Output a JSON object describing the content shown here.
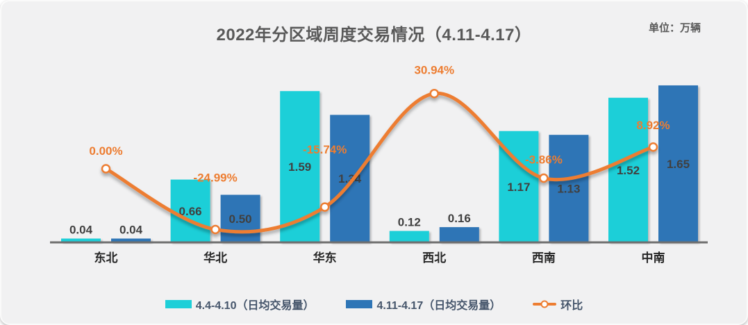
{
  "header": {
    "title": "2022年分区域周度交易情况（4.11-4.17）",
    "unit_label": "单位：万辆"
  },
  "chart_data": {
    "type": "combo-bar-line",
    "categories": [
      "东北",
      "华北",
      "华东",
      "西北",
      "西南",
      "中南"
    ],
    "series": [
      {
        "name": "4.4-4.10（日均交易量）",
        "type": "bar",
        "color": "#1ECFD8",
        "values": [
          0.04,
          0.66,
          1.59,
          0.12,
          1.17,
          1.52
        ]
      },
      {
        "name": "4.11-4.17（日均交易量）",
        "type": "bar",
        "color": "#2E75B6",
        "values": [
          0.04,
          0.5,
          1.34,
          0.16,
          1.13,
          1.65
        ]
      },
      {
        "name": "环比",
        "type": "line",
        "color": "#ED7D31",
        "values": [
          0.0,
          -24.99,
          -15.74,
          30.94,
          -3.86,
          8.92
        ]
      }
    ],
    "bar_value_labels": [
      [
        "0.04",
        "0.66",
        "1.59",
        "0.12",
        "1.17",
        "1.52"
      ],
      [
        "0.04",
        "0.50",
        "1.34",
        "0.16",
        "1.13",
        "1.65"
      ]
    ],
    "line_point_labels": [
      "0.00%",
      "-24.99%",
      "-15.74%",
      "30.94%",
      "-3.86%",
      "8.92%"
    ],
    "unit": "万辆",
    "y_axis_visible": false,
    "grid": false,
    "legend_position": "bottom"
  },
  "legend": {
    "items": [
      {
        "label": "4.4-4.10（日均交易量）",
        "swatch": "rect",
        "color": "#1ECFD8"
      },
      {
        "label": "4.11-4.17（日均交易量）",
        "swatch": "rect",
        "color": "#2E75B6"
      },
      {
        "label": "环比",
        "swatch": "line-marker",
        "color": "#ED7D31"
      }
    ]
  },
  "colors": {
    "background": "#F1F1F2",
    "series1": "#1ECFD8",
    "series2": "#2E75B6",
    "line": "#ED7D31",
    "bar_label": "#404040",
    "pct_label": "#ED7D31",
    "category_label": "#262626",
    "title": "#595959",
    "axis": "#6E6E6E",
    "legend_text": "#44546A"
  }
}
